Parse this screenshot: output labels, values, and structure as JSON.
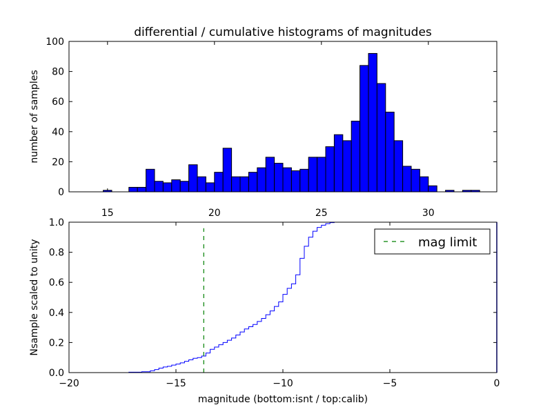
{
  "chart_data": [
    {
      "type": "bar",
      "title": "differential / cumulative histograms of magnitudes",
      "xlabel": "",
      "ylabel": "number of samples",
      "xlim": [
        13.2,
        33.2
      ],
      "ylim": [
        0,
        100
      ],
      "x_ticks": [
        "15",
        "20",
        "25",
        "30"
      ],
      "y_ticks": [
        "0",
        "20",
        "40",
        "60",
        "80",
        "100"
      ],
      "bin_width": 0.4,
      "bins": [
        {
          "x": 14.8,
          "count": 1
        },
        {
          "x": 16.0,
          "count": 3
        },
        {
          "x": 16.4,
          "count": 3
        },
        {
          "x": 16.8,
          "count": 15
        },
        {
          "x": 17.2,
          "count": 7
        },
        {
          "x": 17.6,
          "count": 6
        },
        {
          "x": 18.0,
          "count": 8
        },
        {
          "x": 18.4,
          "count": 7
        },
        {
          "x": 18.8,
          "count": 18
        },
        {
          "x": 19.2,
          "count": 10
        },
        {
          "x": 19.6,
          "count": 6
        },
        {
          "x": 20.0,
          "count": 13
        },
        {
          "x": 20.4,
          "count": 29
        },
        {
          "x": 20.8,
          "count": 10
        },
        {
          "x": 21.2,
          "count": 10
        },
        {
          "x": 21.6,
          "count": 13
        },
        {
          "x": 22.0,
          "count": 16
        },
        {
          "x": 22.4,
          "count": 23
        },
        {
          "x": 22.8,
          "count": 19
        },
        {
          "x": 23.2,
          "count": 16
        },
        {
          "x": 23.6,
          "count": 14
        },
        {
          "x": 24.0,
          "count": 15
        },
        {
          "x": 24.4,
          "count": 23
        },
        {
          "x": 24.8,
          "count": 23
        },
        {
          "x": 25.2,
          "count": 30
        },
        {
          "x": 25.6,
          "count": 38
        },
        {
          "x": 26.0,
          "count": 34
        },
        {
          "x": 26.4,
          "count": 47
        },
        {
          "x": 26.8,
          "count": 84
        },
        {
          "x": 27.2,
          "count": 92
        },
        {
          "x": 27.6,
          "count": 72
        },
        {
          "x": 28.0,
          "count": 53
        },
        {
          "x": 28.4,
          "count": 34
        },
        {
          "x": 28.8,
          "count": 17
        },
        {
          "x": 29.2,
          "count": 15
        },
        {
          "x": 29.6,
          "count": 10
        },
        {
          "x": 30.0,
          "count": 4
        },
        {
          "x": 30.8,
          "count": 1
        },
        {
          "x": 31.6,
          "count": 1
        },
        {
          "x": 32.0,
          "count": 1
        }
      ],
      "colors": {
        "bar": "#0000ff",
        "edge": "#000000"
      }
    },
    {
      "type": "line",
      "title": "",
      "xlabel": "magnitude (bottom:isnt / top:calib)",
      "ylabel": "Nsample scaled to unity",
      "xlim": [
        -20,
        0
      ],
      "ylim": [
        0,
        1
      ],
      "x_ticks": [
        "−20",
        "−15",
        "−10",
        "−5",
        "0"
      ],
      "y_ticks": [
        "0.0",
        "0.2",
        "0.4",
        "0.6",
        "0.8",
        "1.0"
      ],
      "step": {
        "x": [
          -20,
          -17.2,
          -16.6,
          -16.2,
          -16.0,
          -15.8,
          -15.6,
          -15.4,
          -15.2,
          -15.0,
          -14.8,
          -14.6,
          -14.4,
          -14.2,
          -14.0,
          -13.8,
          -13.6,
          -13.4,
          -13.2,
          -13.0,
          -12.8,
          -12.6,
          -12.4,
          -12.2,
          -12.0,
          -11.8,
          -11.6,
          -11.4,
          -11.2,
          -11.0,
          -10.8,
          -10.6,
          -10.4,
          -10.2,
          -10.0,
          -9.8,
          -9.6,
          -9.4,
          -9.2,
          -9.0,
          -8.8,
          -8.6,
          -8.4,
          -8.2,
          -8.0,
          -7.8,
          -7.6,
          -7.4,
          0
        ],
        "y": [
          0.0,
          0.003,
          0.006,
          0.012,
          0.02,
          0.03,
          0.037,
          0.042,
          0.05,
          0.057,
          0.065,
          0.075,
          0.085,
          0.095,
          0.1,
          0.11,
          0.13,
          0.155,
          0.17,
          0.185,
          0.2,
          0.215,
          0.23,
          0.25,
          0.27,
          0.29,
          0.305,
          0.32,
          0.34,
          0.36,
          0.385,
          0.41,
          0.44,
          0.47,
          0.52,
          0.56,
          0.59,
          0.65,
          0.76,
          0.84,
          0.9,
          0.94,
          0.965,
          0.98,
          0.99,
          0.997,
          1.0,
          1.0,
          1.0
        ]
      },
      "vline": {
        "x": -13.7,
        "ymax": 0.96,
        "label": "mag limit"
      },
      "legend": {
        "position": "top-right",
        "entries": [
          "mag limit"
        ]
      },
      "colors": {
        "line": "#0000ff",
        "vline": "#008000"
      }
    }
  ]
}
